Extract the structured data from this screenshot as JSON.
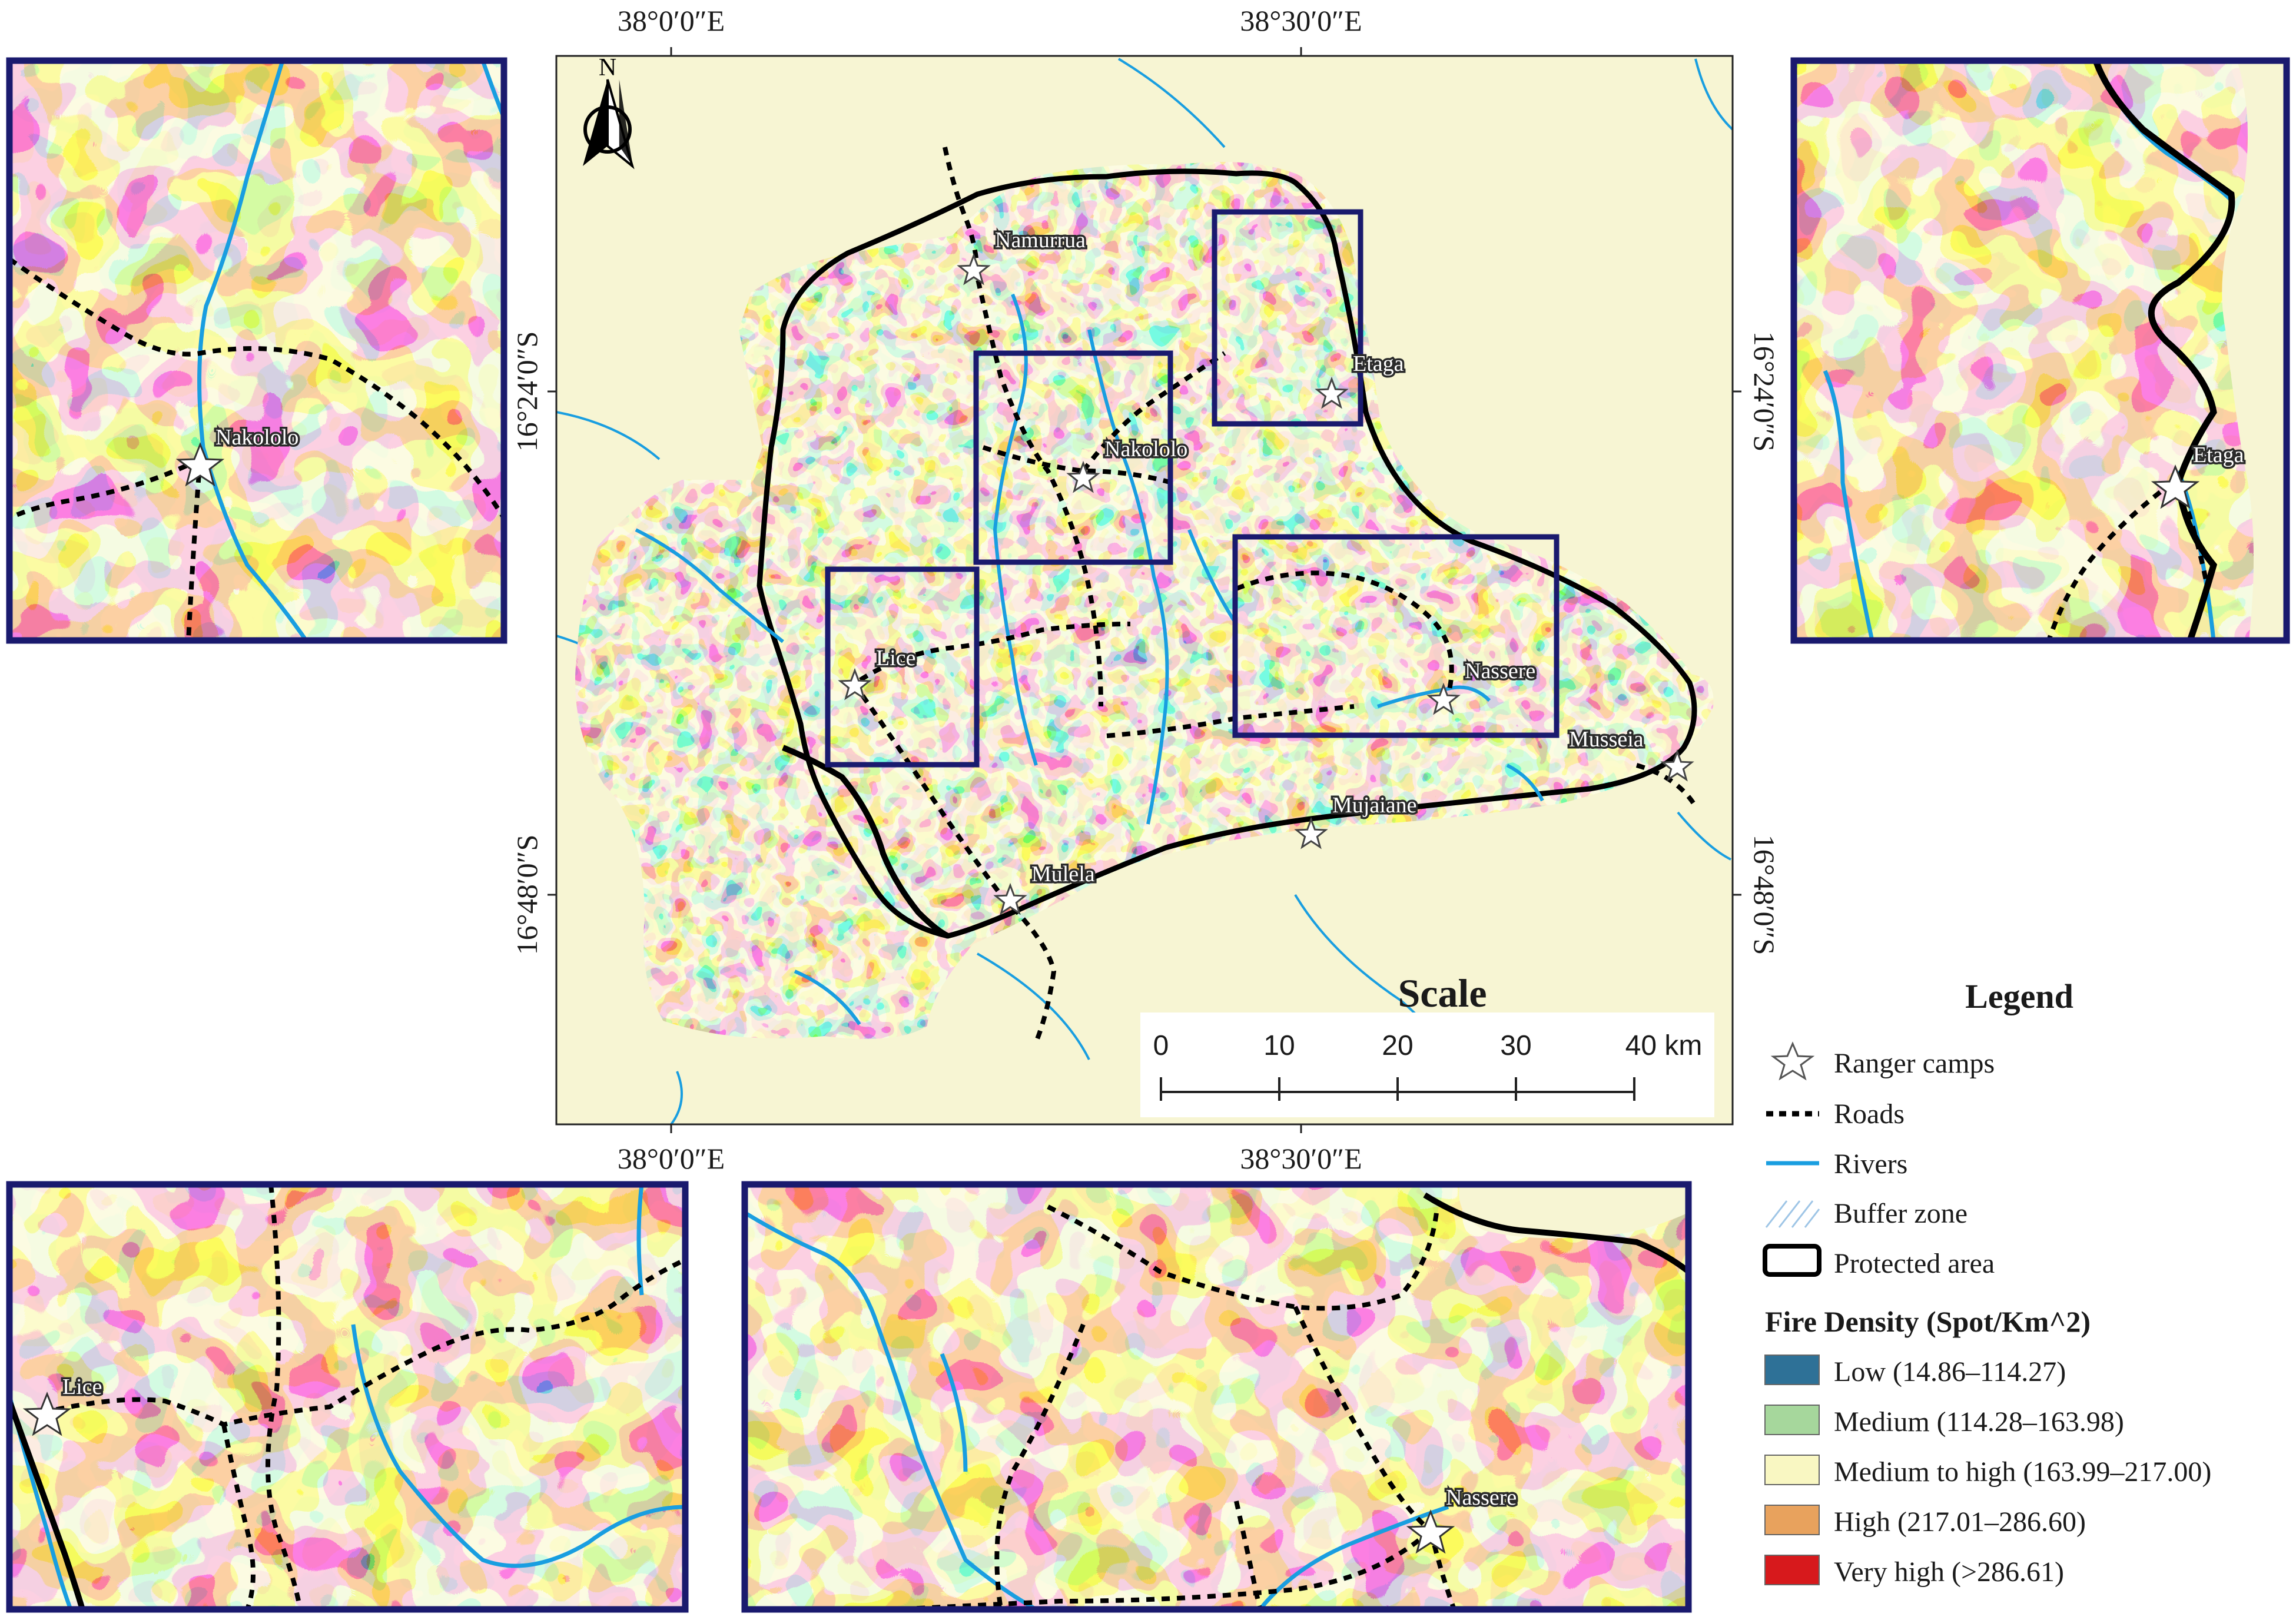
{
  "colors": {
    "low": "#2e7197",
    "medium": "#a6d79c",
    "medium_high": "#f9f7c2",
    "high": "#e8a25d",
    "very_high": "#a7361c",
    "very_high_legend": "#d7191c",
    "background": "#f7f5d3",
    "river": "#199ee0",
    "frame": "#1a1a6e"
  },
  "north_arrow": {
    "label": "N"
  },
  "coordinates": {
    "top": [
      "38°0′0″E",
      "38°30′0″E"
    ],
    "bottom": [
      "38°0′0″E",
      "38°30′0″E"
    ],
    "left": [
      "16°24′0″S",
      "16°48′0″S"
    ],
    "right": [
      "16°24′0″S",
      "16°48′0″S"
    ]
  },
  "ranger_camps": [
    "Namurrua",
    "Etaga",
    "Nakololo",
    "Lice",
    "Nassere",
    "Musseia",
    "Mujaiane",
    "Mulela"
  ],
  "insets": {
    "top_left": {
      "camp": "Nakololo"
    },
    "top_right": {
      "camp": "Etaga"
    },
    "bottom_left": {
      "camp": "Lice"
    },
    "bottom_middle": {
      "camp": "Nassere"
    }
  },
  "scale": {
    "title": "Scale",
    "ticks": [
      "0",
      "10",
      "20",
      "30"
    ],
    "last_tick": "40 km"
  },
  "legend": {
    "title": "Legend",
    "ranger_camps": "Ranger camps",
    "roads": "Roads",
    "rivers": "Rivers",
    "buffer_zone": "Buffer zone",
    "protected_area": "Protected area",
    "fire_density_title": "Fire Density (Spot/Km^2)",
    "classes": [
      {
        "label": "Low (14.86–114.27)",
        "color": "#2e7197"
      },
      {
        "label": "Medium (114.28–163.98)",
        "color": "#a6d79c"
      },
      {
        "label": "Medium to high (163.99–217.00)",
        "color": "#f9f7c2"
      },
      {
        "label": "High (217.01–286.60)",
        "color": "#e8a25d"
      },
      {
        "label": "Very high (>286.61)",
        "color": "#d7191c"
      }
    ]
  }
}
